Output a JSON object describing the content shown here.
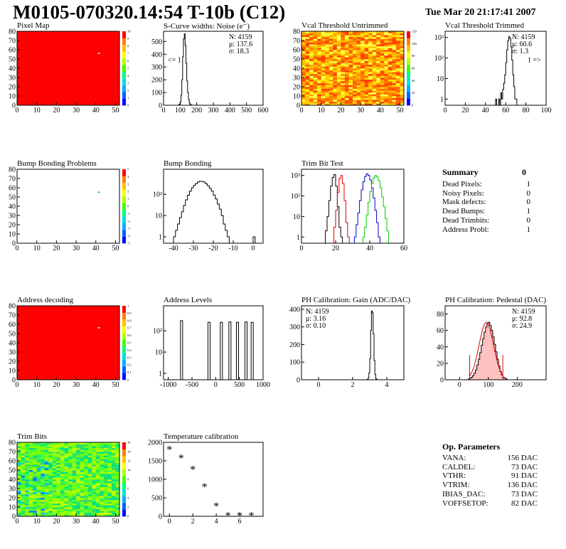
{
  "header": {
    "title": "M0105-070320.14:54 T-10b (C12)",
    "date": "Tue Mar 20 21:17:41 2007"
  },
  "colors": {
    "map_red": "#ff0000",
    "hist_black": "#000000",
    "red": "#dd0000",
    "blue": "#0000cc",
    "green": "#00cc00"
  },
  "summary": {
    "title": "Summary",
    "total": "0",
    "rows": [
      {
        "label": "Dead Pixels:",
        "value": "1"
      },
      {
        "label": "Noisy Pixels:",
        "value": "0"
      },
      {
        "label": "Mask defects:",
        "value": "0"
      },
      {
        "label": "Dead Bumps:",
        "value": "1"
      },
      {
        "label": "Dead Trimbits:",
        "value": "0"
      },
      {
        "label": "Address Probl:",
        "value": "1"
      }
    ]
  },
  "op_params": {
    "title": "Op. Parameters",
    "rows": [
      {
        "label": "VANA:",
        "value": "156 DAC"
      },
      {
        "label": "CALDEL:",
        "value": "73 DAC"
      },
      {
        "label": "VTHR:",
        "value": "91 DAC"
      },
      {
        "label": "VTRIM:",
        "value": "136 DAC"
      },
      {
        "label": "IBIAS_DAC:",
        "value": "73 DAC"
      },
      {
        "label": "VOFFSETOP:",
        "value": "82 DAC"
      }
    ]
  },
  "chart_data": [
    {
      "id": "pixel_map",
      "title": "Pixel Map",
      "type": "heatmap",
      "xlim": [
        0,
        52
      ],
      "ylim": [
        0,
        80
      ],
      "xticks": [
        0,
        10,
        20,
        30,
        40,
        50
      ],
      "yticks": [
        0,
        10,
        20,
        30,
        40,
        50,
        60,
        70,
        80
      ],
      "zticks": [
        "0",
        "1",
        "2",
        "3",
        "4",
        "5",
        "6",
        "7",
        "8",
        "9",
        "10"
      ],
      "fill": "uniform",
      "highlight": [
        41,
        56
      ]
    },
    {
      "id": "scurve",
      "title": "S-Curve widths: Noise (e⁻)",
      "type": "bar",
      "xlim": [
        0,
        600
      ],
      "ylim": [
        0,
        580
      ],
      "log": false,
      "xticks": [
        0,
        100,
        200,
        300,
        400,
        500,
        600
      ],
      "yticks": [
        0,
        100,
        200,
        300,
        400,
        500
      ],
      "stats": [
        "N: 4159",
        "μ: 137.6",
        "σ: 18.3"
      ],
      "annotation": "<= 1",
      "series": [
        {
          "color": "#000000",
          "x0": 90,
          "dx": 5,
          "values": [
            2,
            8,
            25,
            80,
            200,
            380,
            520,
            560,
            470,
            330,
            190,
            100,
            45,
            18,
            6,
            2
          ]
        }
      ]
    },
    {
      "id": "vcal_untrimmed",
      "title": "Vcal Threshold Untrimmed",
      "type": "heatmap",
      "xlim": [
        0,
        52
      ],
      "ylim": [
        0,
        80
      ],
      "xticks": [
        0,
        10,
        20,
        30,
        40,
        50
      ],
      "yticks": [
        0,
        10,
        20,
        30,
        40,
        50,
        60,
        70,
        80
      ],
      "zticks": [
        "0",
        "20",
        "40",
        "60",
        "80",
        "100",
        "120"
      ],
      "fill": "noise-warm"
    },
    {
      "id": "vcal_trimmed",
      "title": "Vcal Threshold Trimmed",
      "type": "bar",
      "xlim": [
        0,
        100
      ],
      "ylim": [
        0.5,
        2000
      ],
      "log": true,
      "xticks": [
        0,
        20,
        40,
        60,
        80,
        100
      ],
      "yticks": [
        1,
        10,
        100,
        1000
      ],
      "ytick_labels": [
        "1",
        "10",
        "10²",
        "10³"
      ],
      "stats": [
        "N: 4159",
        "μ: 60.6",
        "σ: 1.3"
      ],
      "annotation": "1 =>",
      "series": [
        {
          "color": "#000000",
          "x0": 50,
          "dx": 1,
          "values": [
            1,
            0,
            0,
            1,
            0,
            2,
            1,
            3,
            6,
            15,
            60,
            250,
            700,
            1100,
            900,
            350,
            80,
            15,
            4,
            1,
            1
          ]
        }
      ]
    },
    {
      "id": "bump_map",
      "title": "Bump Bonding Problems",
      "type": "heatmap",
      "xlim": [
        0,
        52
      ],
      "ylim": [
        0,
        80
      ],
      "xticks": [
        0,
        10,
        20,
        30,
        40,
        50
      ],
      "yticks": [
        0,
        10,
        20,
        30,
        40,
        50,
        60,
        70,
        80
      ],
      "zticks": [
        "-5",
        "-4",
        "-3",
        "-2",
        "-1",
        "0",
        "1",
        "2",
        "3",
        "4",
        "5"
      ],
      "fill": "empty",
      "highlight": [
        41,
        55
      ]
    },
    {
      "id": "bump_bonding",
      "title": "Bump Bonding",
      "type": "bar",
      "xlim": [
        -45,
        5
      ],
      "ylim": [
        0.5,
        1500
      ],
      "log": true,
      "xticks": [
        -40,
        -30,
        -20,
        -10,
        0
      ],
      "yticks": [
        1,
        10,
        100
      ],
      "ytick_labels": [
        "1",
        "10",
        "10²"
      ],
      "series": [
        {
          "color": "#000000",
          "x0": -40,
          "dx": 1,
          "values": [
            1,
            2,
            4,
            8,
            15,
            30,
            55,
            90,
            140,
            200,
            260,
            320,
            380,
            410,
            400,
            370,
            310,
            250,
            190,
            140,
            90,
            60,
            35,
            20,
            10,
            4,
            2,
            1,
            0,
            0,
            0,
            0,
            0,
            0,
            0,
            0,
            0,
            0,
            0,
            0,
            1,
            0
          ]
        }
      ]
    },
    {
      "id": "trim_bit",
      "title": "Trim Bit Test",
      "type": "bar",
      "xlim": [
        0,
        60
      ],
      "ylim": [
        0.5,
        2000
      ],
      "log": true,
      "xticks": [
        0,
        20,
        40,
        60
      ],
      "yticks": [
        1,
        10,
        100,
        1000
      ],
      "ytick_labels": [
        "1",
        "10",
        "10²",
        "10³"
      ],
      "series": [
        {
          "color": "#000000",
          "x0": 14,
          "dx": 1,
          "values": [
            2,
            10,
            60,
            300,
            800,
            1100,
            300,
            30,
            3,
            1
          ]
        },
        {
          "color": "#dd0000",
          "x0": 19,
          "dx": 1,
          "values": [
            3,
            20,
            150,
            700,
            1000,
            400,
            60,
            5,
            1
          ]
        },
        {
          "color": "#0000cc",
          "x0": 31,
          "dx": 1,
          "values": [
            1,
            4,
            15,
            60,
            200,
            500,
            900,
            1200,
            1000,
            600,
            250,
            80,
            20,
            5,
            1
          ]
        },
        {
          "color": "#00cc00",
          "x0": 36,
          "dx": 1,
          "values": [
            1,
            3,
            12,
            50,
            160,
            400,
            750,
            1000,
            850,
            550,
            250,
            90,
            30,
            8,
            2
          ]
        }
      ]
    },
    {
      "id": "address_map",
      "title": "Address decoding",
      "type": "heatmap",
      "xlim": [
        0,
        52
      ],
      "ylim": [
        0,
        80
      ],
      "xticks": [
        0,
        10,
        20,
        30,
        40,
        50
      ],
      "yticks": [
        0,
        10,
        20,
        30,
        40,
        50,
        60,
        70,
        80
      ],
      "zticks": [
        "0",
        "0.1",
        "0.2",
        "0.3",
        "0.4",
        "0.5",
        "0.6",
        "0.7",
        "0.8",
        "0.9",
        "1"
      ],
      "fill": "uniform",
      "highlight": [
        41,
        56
      ]
    },
    {
      "id": "address_levels",
      "title": "Address Levels",
      "type": "bar",
      "xlim": [
        -1100,
        1000
      ],
      "ylim": [
        0.5,
        1500
      ],
      "log": true,
      "xticks": [
        -1000,
        -500,
        0,
        500,
        1000
      ],
      "yticks": [
        1,
        10,
        100
      ],
      "ytick_labels": [
        "1",
        "10",
        "10²"
      ],
      "series": [
        {
          "color": "#000000",
          "peaks": [
            -720,
            -140,
            120,
            300,
            460,
            640,
            770
          ],
          "heights": [
            300,
            250,
            250,
            260,
            250,
            260,
            250
          ],
          "width": 45
        }
      ]
    },
    {
      "id": "ph_gain",
      "title": "PH Calibration: Gain (ADC/DAC)",
      "type": "bar",
      "xlim": [
        -1,
        5
      ],
      "ylim": [
        0,
        420
      ],
      "log": false,
      "xticks": [
        0,
        2,
        4
      ],
      "yticks": [
        0,
        100,
        200,
        300,
        400
      ],
      "stats": [
        "N: 4159",
        "μ: 3.16",
        "σ: 0.10"
      ],
      "series": [
        {
          "color": "#000000",
          "x0": 2.85,
          "dx": 0.05,
          "values": [
            2,
            10,
            40,
            120,
            280,
            390,
            380,
            260,
            110,
            30,
            6,
            1
          ]
        }
      ]
    },
    {
      "id": "ph_pedestal",
      "title": "PH Calibration: Pedestal (DAC)",
      "type": "bar",
      "xlim": [
        -50,
        300
      ],
      "ylim": [
        0,
        90
      ],
      "log": false,
      "xticks": [
        0,
        100,
        200
      ],
      "yticks": [
        0,
        20,
        40,
        60,
        80
      ],
      "stats": [
        "N: 4159",
        "μ: 92.8",
        "σ: 24.9"
      ],
      "stats_colors": [
        "#000",
        "#d00",
        "#d00"
      ],
      "series": [
        {
          "color": "#000000",
          "x0": 30,
          "dx": 5,
          "values": [
            1,
            2,
            3,
            5,
            8,
            12,
            18,
            25,
            33,
            42,
            50,
            58,
            64,
            68,
            70,
            66,
            60,
            52,
            43,
            34,
            25,
            17,
            10,
            6,
            3,
            2,
            1
          ],
          "fit": true
        }
      ]
    },
    {
      "id": "trim_bits",
      "title": "Trim Bits",
      "type": "heatmap",
      "xlim": [
        0,
        52
      ],
      "ylim": [
        0,
        80
      ],
      "xticks": [
        0,
        10,
        20,
        30,
        40,
        50
      ],
      "yticks": [
        0,
        10,
        20,
        30,
        40,
        50,
        60,
        70,
        80
      ],
      "zticks": [
        "0",
        "2",
        "4",
        "6",
        "8",
        "10",
        "12",
        "14",
        "16"
      ],
      "fill": "noise-green"
    },
    {
      "id": "temperature",
      "title": "Temperature calibration",
      "type": "scatter",
      "xlim": [
        -0.5,
        8
      ],
      "ylim": [
        0,
        2000
      ],
      "log": false,
      "xticks": [
        0,
        2,
        4,
        6
      ],
      "yticks": [
        0,
        500,
        1000,
        1500,
        2000
      ],
      "x": [
        0,
        1,
        2,
        3,
        4,
        5,
        6,
        7
      ],
      "y": [
        1820,
        1590,
        1280,
        810,
        290,
        30,
        30,
        30
      ]
    }
  ]
}
